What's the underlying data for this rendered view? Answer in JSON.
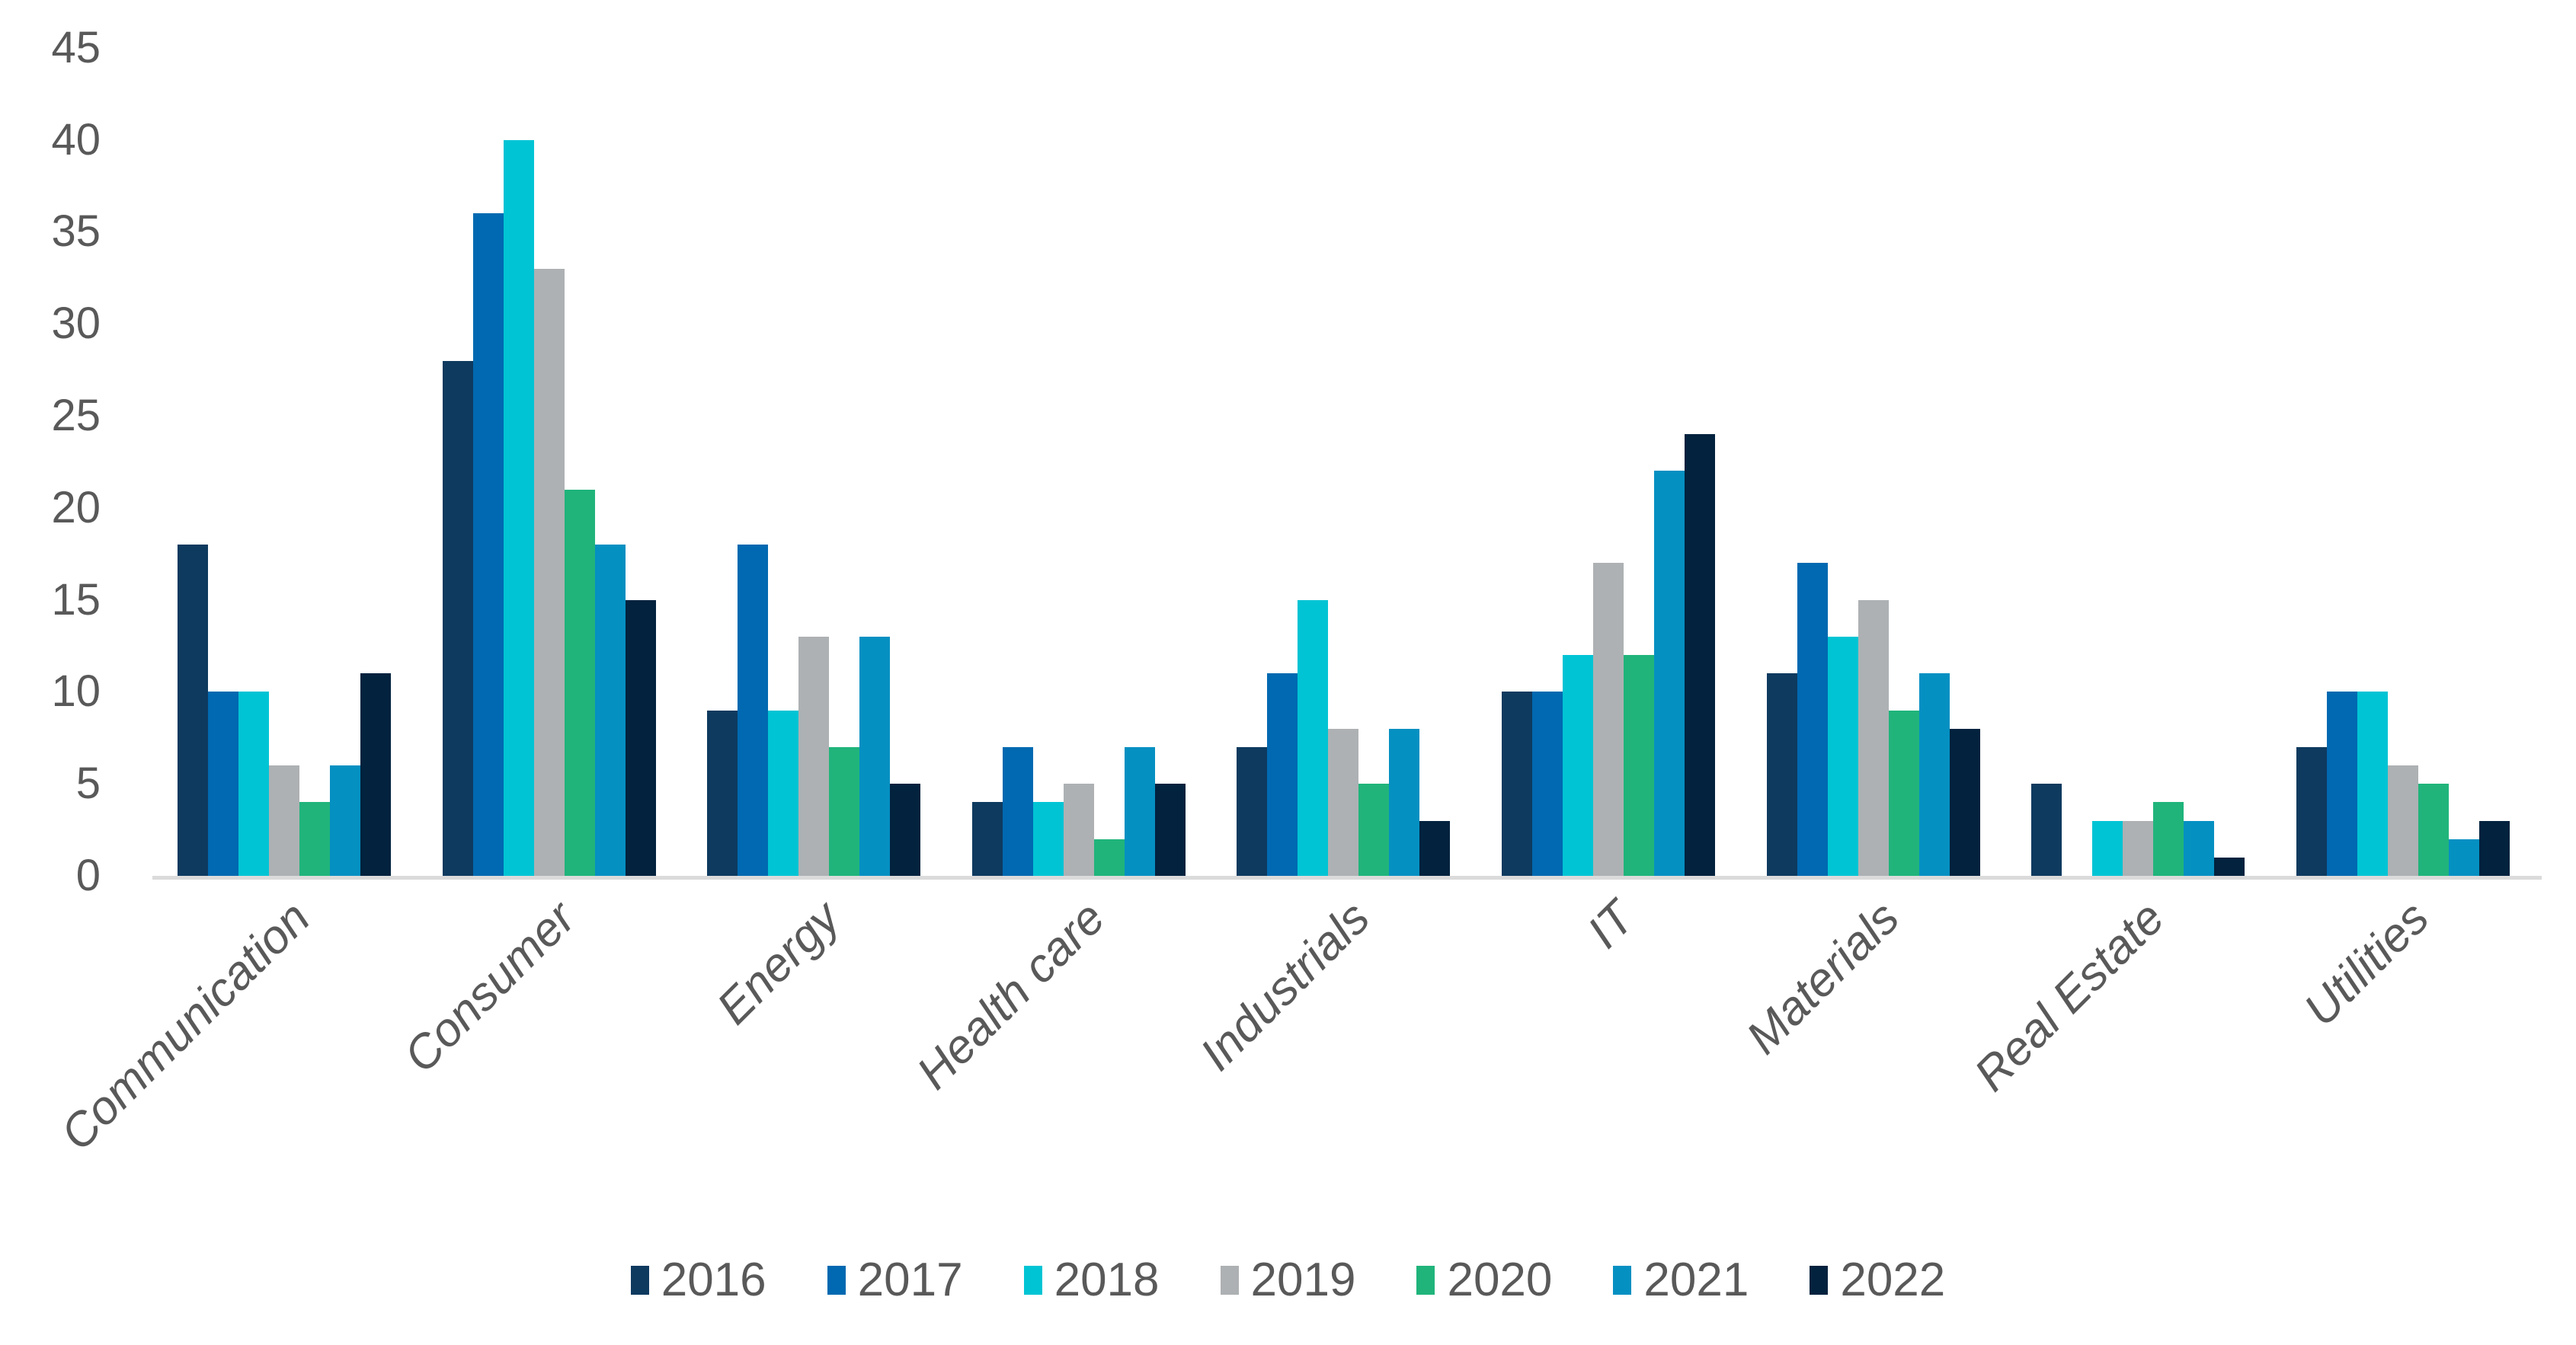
{
  "chart_data": {
    "type": "bar",
    "title": "",
    "categories": [
      "Communication",
      "Consumer",
      "Energy",
      "Health care",
      "Industrials",
      "IT",
      "Materials",
      "Real Estate",
      "Utilities"
    ],
    "series": [
      {
        "name": "2016",
        "color": "#0E3A5F",
        "values": [
          18,
          28,
          9,
          4,
          7,
          10,
          11,
          5,
          7
        ]
      },
      {
        "name": "2017",
        "color": "#0069B1",
        "values": [
          10,
          36,
          18,
          7,
          11,
          10,
          17,
          0,
          10
        ]
      },
      {
        "name": "2018",
        "color": "#00C4D4",
        "values": [
          10,
          40,
          9,
          4,
          15,
          12,
          13,
          3,
          10
        ]
      },
      {
        "name": "2019",
        "color": "#ADB1B3",
        "values": [
          6,
          33,
          13,
          5,
          8,
          17,
          15,
          3,
          6
        ]
      },
      {
        "name": "2020",
        "color": "#20B47B",
        "values": [
          4,
          21,
          7,
          2,
          5,
          12,
          9,
          4,
          5
        ]
      },
      {
        "name": "2021",
        "color": "#0590C2",
        "values": [
          6,
          18,
          13,
          7,
          8,
          22,
          11,
          3,
          2
        ]
      },
      {
        "name": "2022",
        "color": "#02223E",
        "values": [
          11,
          15,
          5,
          5,
          3,
          24,
          8,
          1,
          3
        ]
      }
    ],
    "y_ticks": [
      0,
      5,
      10,
      15,
      20,
      25,
      30,
      35,
      40,
      45
    ],
    "ylim": [
      0,
      45
    ],
    "xlabel": "",
    "ylabel": "",
    "grid": false,
    "legend_position": "bottom",
    "axis_text_color": "#595959",
    "axis_line_color": "#DBDBDB"
  }
}
